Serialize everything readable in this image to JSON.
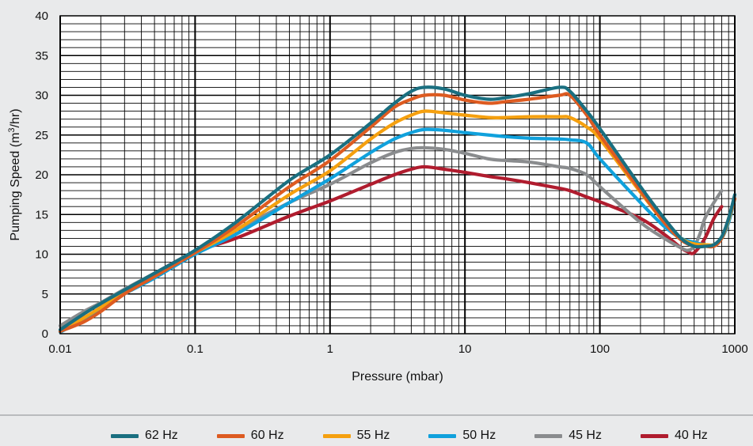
{
  "chart_data": {
    "type": "line",
    "xlabel": "Pressure (mbar)",
    "ylabel_prefix": "Pumping Speed (m",
    "ylabel_sup": "3",
    "ylabel_suffix": "/hr)",
    "x_scale": "log",
    "xlim": [
      0.01,
      1000
    ],
    "ylim": [
      0,
      40
    ],
    "x_ticks": [
      0.01,
      0.1,
      1,
      10,
      100,
      1000
    ],
    "x_tick_labels": [
      "0.01",
      "0.1",
      "1",
      "10",
      "100",
      "1000"
    ],
    "y_ticks": [
      0,
      5,
      10,
      15,
      20,
      25,
      30,
      35,
      40
    ],
    "y_tick_labels": [
      "0",
      "5",
      "10",
      "15",
      "20",
      "25",
      "30",
      "35",
      "40"
    ],
    "grid": true,
    "legend_position": "bottom",
    "series": [
      {
        "name": "62 Hz",
        "color": "#1a6f80",
        "x": [
          0.01,
          0.015,
          0.02,
          0.03,
          0.05,
          0.1,
          0.2,
          0.5,
          1,
          2,
          3,
          4,
          5,
          7,
          10,
          15,
          20,
          30,
          50,
          60,
          80,
          100,
          200,
          300,
          400,
          500,
          600,
          700,
          800,
          900,
          1000
        ],
        "y": [
          0.5,
          2.5,
          3.8,
          5.5,
          7.6,
          10.5,
          14.0,
          19.3,
          22.5,
          26.5,
          29.0,
          30.5,
          31.0,
          30.8,
          30.0,
          29.5,
          29.7,
          30.2,
          31.0,
          30.5,
          28.0,
          25.8,
          18.5,
          14.5,
          12.0,
          11.0,
          11.0,
          11.2,
          12.2,
          14.5,
          17.5
        ]
      },
      {
        "name": "60 Hz",
        "color": "#dd5b21",
        "x": [
          0.01,
          0.015,
          0.02,
          0.03,
          0.05,
          0.1,
          0.2,
          0.5,
          1,
          2,
          3,
          4,
          5,
          7,
          10,
          15,
          20,
          30,
          50,
          60,
          80,
          100,
          200,
          300,
          400,
          500,
          600,
          700,
          800,
          900,
          1000
        ],
        "y": [
          0.3,
          1.5,
          2.8,
          5.0,
          7.2,
          10.2,
          13.5,
          18.5,
          21.8,
          26.0,
          28.5,
          29.5,
          30.0,
          30.0,
          29.4,
          29.0,
          29.2,
          29.5,
          30.0,
          30.0,
          27.5,
          25.0,
          18.0,
          14.0,
          11.8,
          11.0,
          11.0,
          11.0,
          12.0,
          14.5,
          17.0
        ]
      },
      {
        "name": "55 Hz",
        "color": "#f5a00f",
        "x": [
          0.01,
          0.015,
          0.02,
          0.03,
          0.05,
          0.1,
          0.2,
          0.5,
          1,
          2,
          3,
          4,
          5,
          7,
          10,
          15,
          20,
          30,
          50,
          60,
          80,
          100,
          200,
          300,
          400,
          500,
          600,
          700,
          800,
          900,
          1000
        ],
        "y": [
          0.3,
          2.0,
          3.3,
          5.2,
          7.3,
          10.2,
          13.0,
          17.5,
          20.5,
          24.5,
          26.5,
          27.5,
          28.0,
          27.8,
          27.5,
          27.2,
          27.2,
          27.3,
          27.3,
          27.2,
          26.0,
          24.5,
          17.8,
          14.0,
          12.0,
          11.3,
          11.2,
          11.2,
          12.0,
          14.3,
          17.0
        ]
      },
      {
        "name": "50 Hz",
        "color": "#10a1dc",
        "x": [
          0.01,
          0.015,
          0.02,
          0.03,
          0.05,
          0.1,
          0.2,
          0.5,
          1,
          2,
          3,
          4,
          5,
          7,
          10,
          15,
          20,
          30,
          50,
          60,
          80,
          100,
          200,
          300,
          400,
          500,
          600,
          700,
          800,
          900,
          1000
        ],
        "y": [
          0.2,
          1.8,
          3.0,
          5.0,
          7.0,
          10.0,
          12.5,
          16.5,
          19.5,
          22.8,
          24.5,
          25.3,
          25.7,
          25.6,
          25.3,
          25.0,
          24.8,
          24.6,
          24.5,
          24.4,
          24.0,
          22.0,
          16.5,
          13.5,
          12.0,
          11.5,
          11.2,
          11.2,
          12.0,
          14.0,
          17.0
        ]
      },
      {
        "name": "45 Hz",
        "color": "#8a8c8e",
        "x": [
          0.01,
          0.015,
          0.02,
          0.03,
          0.05,
          0.1,
          0.2,
          0.5,
          1,
          2,
          3,
          4,
          5,
          7,
          10,
          15,
          20,
          30,
          50,
          60,
          80,
          100,
          200,
          300,
          400,
          450,
          500,
          550,
          600,
          700,
          800
        ],
        "y": [
          1.0,
          2.8,
          3.9,
          5.6,
          7.6,
          10.3,
          13.0,
          16.5,
          18.8,
          21.5,
          22.8,
          23.3,
          23.4,
          23.2,
          22.7,
          22.0,
          21.8,
          21.6,
          21.0,
          20.8,
          20.0,
          18.5,
          14.0,
          12.0,
          10.8,
          10.5,
          11.0,
          12.5,
          14.5,
          16.5,
          18.0
        ]
      },
      {
        "name": "40 Hz",
        "color": "#b01c2e",
        "x": [
          0.01,
          0.015,
          0.02,
          0.03,
          0.05,
          0.1,
          0.2,
          0.5,
          1,
          2,
          3,
          4,
          5,
          7,
          10,
          15,
          20,
          30,
          50,
          60,
          80,
          100,
          200,
          300,
          400,
          450,
          500,
          600,
          700,
          800
        ],
        "y": [
          0.3,
          2.5,
          3.8,
          5.5,
          7.6,
          10.3,
          12.0,
          14.8,
          16.7,
          18.8,
          20.0,
          20.7,
          21.0,
          20.7,
          20.3,
          19.8,
          19.5,
          19.0,
          18.3,
          18.0,
          17.2,
          16.6,
          14.5,
          12.5,
          10.8,
          10.3,
          10.2,
          12.0,
          14.5,
          16.0
        ]
      }
    ]
  }
}
